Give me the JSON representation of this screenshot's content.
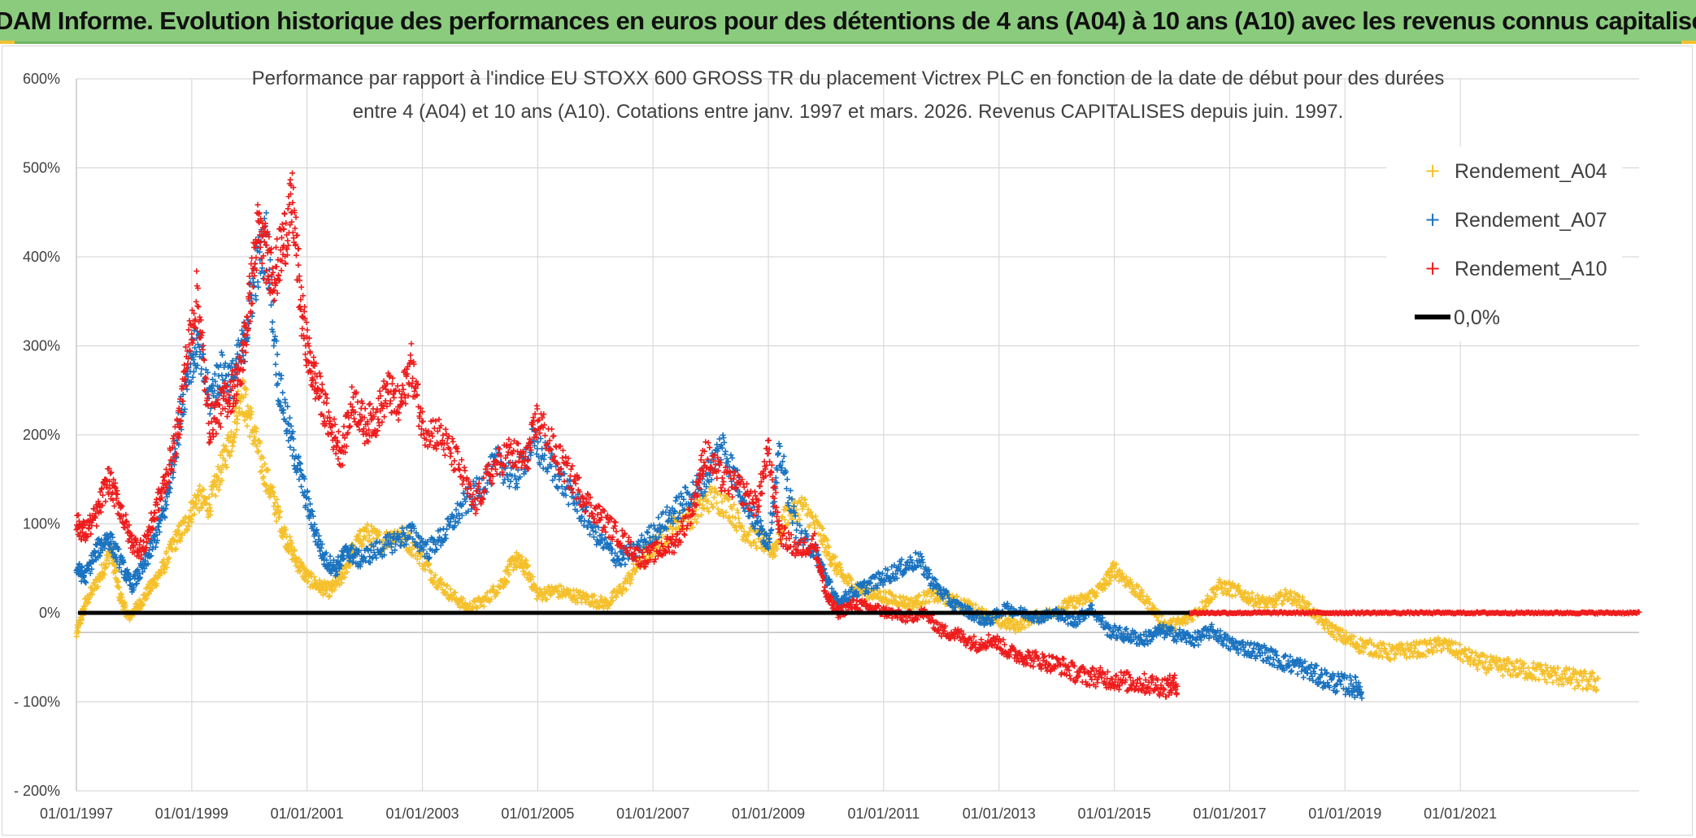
{
  "banner": {
    "title": "ADAM Informe. Evolution historique des performances en euros pour des détentions de 4 ans (A04) à 10 ans (A10) avec les revenus connus capitalisés"
  },
  "chart_data": {
    "type": "scatter",
    "title_line1": "Performance par rapport à l'indice EU STOXX 600 GROSS TR  du placement Victrex PLC en fonction de la date de début pour des durées",
    "title_line2": "entre 4 (A04) et 10 ans (A10). Cotations entre janv. 1997 et mars. 2026. Revenus CAPITALISES depuis juin. 1997.",
    "xlabel": "",
    "ylabel": "",
    "x_range": [
      1997.0,
      2024.1
    ],
    "ylim": [
      -200,
      600
    ],
    "y_ticks": [
      600,
      500,
      400,
      300,
      200,
      100,
      0,
      -100,
      -200
    ],
    "y_tick_labels": [
      "600%",
      "500%",
      "400%",
      "300%",
      "200%",
      "100%",
      "0%",
      "- 100%",
      "- 200%"
    ],
    "x_ticks": [
      1997,
      1999,
      2001,
      2003,
      2005,
      2007,
      2009,
      2011,
      2013,
      2015,
      2017,
      2019,
      2021
    ],
    "x_tick_labels": [
      "01/01/1997",
      "01/01/1999",
      "01/01/2001",
      "01/01/2003",
      "01/01/2005",
      "01/01/2007",
      "01/01/2009",
      "01/01/2011",
      "01/01/2013",
      "01/01/2015",
      "01/01/2017",
      "01/01/2019",
      "01/01/2021"
    ],
    "grid": true,
    "legend_position": "top-right",
    "legend": [
      "Rendement_A04",
      "Rendement_A07",
      "Rendement_A10",
      "0,0%"
    ],
    "colors": {
      "A04": "#f5c02b",
      "A07": "#1a73c0",
      "A10": "#ee1c1c",
      "zero": "#000000",
      "grid": "#d9d9d9",
      "axis": "#bfbfbf"
    },
    "series": [
      {
        "name": "Rendement_A04",
        "color_key": "A04",
        "x": [
          1997.0,
          1997.15,
          1997.4,
          1997.6,
          1997.75,
          1997.9,
          1998.1,
          1998.3,
          1998.5,
          1998.7,
          1998.9,
          1999.1,
          1999.3,
          1999.5,
          1999.7,
          1999.85,
          2000.0,
          2000.2,
          2000.4,
          2000.6,
          2000.8,
          2001.0,
          2001.2,
          2001.4,
          2001.6,
          2001.8,
          2002.0,
          2002.3,
          2002.6,
          2002.9,
          2003.2,
          2003.5,
          2003.8,
          2004.1,
          2004.4,
          2004.6,
          2004.8,
          2005.0,
          2005.3,
          2005.6,
          2005.9,
          2006.2,
          2006.5,
          2006.8,
          2007.1,
          2007.4,
          2007.7,
          2008.0,
          2008.3,
          2008.6,
          2008.9,
          2009.1,
          2009.3,
          2009.6,
          2009.9,
          2010.1,
          2010.3,
          2010.6,
          2010.9,
          2011.2,
          2011.5,
          2011.8,
          2012.1,
          2012.4,
          2012.7,
          2013.0,
          2013.3,
          2013.6,
          2013.9,
          2014.2,
          2014.5,
          2014.8,
          2015.0,
          2015.3,
          2015.6,
          2015.9,
          2016.2,
          2016.5,
          2016.8,
          2017.1,
          2017.4,
          2017.7,
          2018.0,
          2018.3,
          2018.6,
          2018.9,
          2019.2,
          2019.5,
          2019.8,
          2020.1,
          2020.4,
          2020.7,
          2021.0,
          2021.3,
          2021.6,
          2021.9,
          2022.2,
          2022.5,
          2022.8,
          2023.1,
          2023.4
        ],
        "values": [
          -25,
          10,
          40,
          70,
          20,
          -5,
          10,
          30,
          50,
          80,
          100,
          130,
          120,
          160,
          200,
          250,
          220,
          170,
          130,
          90,
          60,
          40,
          30,
          25,
          40,
          70,
          90,
          80,
          90,
          70,
          40,
          20,
          5,
          15,
          35,
          60,
          50,
          20,
          25,
          20,
          15,
          10,
          30,
          60,
          80,
          100,
          110,
          130,
          120,
          90,
          80,
          70,
          110,
          120,
          90,
          60,
          40,
          25,
          20,
          15,
          10,
          20,
          15,
          10,
          0,
          -10,
          -15,
          -5,
          0,
          10,
          15,
          30,
          50,
          30,
          10,
          -15,
          -10,
          5,
          30,
          25,
          15,
          10,
          20,
          10,
          -10,
          -25,
          -35,
          -40,
          -45,
          -42,
          -40,
          -35,
          -45,
          -55,
          -60,
          -62,
          -65,
          -68,
          -72,
          -76,
          -78
        ]
      },
      {
        "name": "Rendement_A07",
        "color_key": "A07",
        "x": [
          1997.0,
          1997.15,
          1997.35,
          1997.55,
          1997.75,
          1997.95,
          1998.15,
          1998.35,
          1998.55,
          1998.75,
          1998.95,
          1999.1,
          1999.3,
          1999.5,
          1999.7,
          1999.9,
          2000.1,
          2000.3,
          2000.5,
          2000.7,
          2000.9,
          2001.1,
          2001.3,
          2001.5,
          2001.7,
          2001.9,
          2002.2,
          2002.5,
          2002.8,
          2003.1,
          2003.4,
          2003.7,
          2004.0,
          2004.3,
          2004.6,
          2004.9,
          2005.2,
          2005.5,
          2005.8,
          2006.1,
          2006.4,
          2006.7,
          2007.0,
          2007.3,
          2007.6,
          2007.9,
          2008.2,
          2008.5,
          2008.8,
          2009.0,
          2009.2,
          2009.5,
          2009.8,
          2010.0,
          2010.2,
          2010.4,
          2010.7,
          2011.0,
          2011.3,
          2011.6,
          2011.9,
          2012.2,
          2012.5,
          2012.8,
          2013.1,
          2013.4,
          2013.7,
          2014.0,
          2014.3,
          2014.6,
          2014.9,
          2015.2,
          2015.5,
          2015.8,
          2016.1,
          2016.4,
          2016.7,
          2017.0,
          2017.3,
          2017.6,
          2017.9,
          2018.2,
          2018.5,
          2018.8,
          2019.1,
          2019.3
        ],
        "values": [
          50,
          40,
          70,
          85,
          60,
          30,
          50,
          80,
          120,
          200,
          280,
          300,
          240,
          270,
          260,
          300,
          380,
          420,
          260,
          200,
          150,
          100,
          60,
          50,
          70,
          60,
          70,
          80,
          90,
          70,
          90,
          120,
          140,
          170,
          150,
          190,
          170,
          140,
          110,
          80,
          60,
          70,
          90,
          110,
          130,
          150,
          190,
          140,
          100,
          80,
          180,
          90,
          70,
          40,
          10,
          20,
          30,
          40,
          50,
          60,
          30,
          10,
          0,
          -10,
          5,
          0,
          -5,
          0,
          -10,
          5,
          -20,
          -25,
          -30,
          -20,
          -25,
          -30,
          -20,
          -35,
          -40,
          -45,
          -55,
          -60,
          -70,
          -78,
          -82,
          -85
        ]
      },
      {
        "name": "Rendement_A10",
        "color_key": "A10",
        "x": [
          1997.0,
          1997.15,
          1997.35,
          1997.55,
          1997.75,
          1997.95,
          1998.15,
          1998.35,
          1998.55,
          1998.75,
          1998.9,
          1999.1,
          1999.3,
          1999.5,
          1999.7,
          1999.85,
          2000.0,
          2000.15,
          2000.3,
          2000.45,
          2000.6,
          2000.75,
          2000.9,
          2001.05,
          2001.2,
          2001.4,
          2001.6,
          2001.8,
          2002.0,
          2002.2,
          2002.4,
          2002.6,
          2002.8,
          2003.0,
          2003.3,
          2003.6,
          2003.9,
          2004.2,
          2004.5,
          2004.8,
          2005.0,
          2005.3,
          2005.6,
          2005.9,
          2006.2,
          2006.5,
          2006.8,
          2007.1,
          2007.4,
          2007.7,
          2007.9,
          2008.2,
          2008.5,
          2008.8,
          2009.0,
          2009.2,
          2009.5,
          2009.8,
          2010.0,
          2010.2,
          2010.5,
          2010.8,
          2011.1,
          2011.4,
          2011.7,
          2012.0,
          2012.3,
          2012.6,
          2012.9,
          2013.2,
          2013.5,
          2013.8,
          2014.1,
          2014.4,
          2014.7,
          2015.0,
          2015.3,
          2015.6,
          2015.9,
          2016.1
        ],
        "values": [
          100,
          90,
          110,
          150,
          120,
          80,
          70,
          110,
          150,
          200,
          280,
          360,
          210,
          230,
          250,
          270,
          350,
          430,
          400,
          380,
          420,
          460,
          340,
          280,
          250,
          210,
          180,
          240,
          210,
          220,
          250,
          230,
          280,
          210,
          200,
          170,
          120,
          160,
          180,
          170,
          220,
          180,
          150,
          120,
          100,
          80,
          60,
          70,
          80,
          120,
          180,
          150,
          140,
          120,
          180,
          90,
          70,
          80,
          20,
          0,
          10,
          5,
          0,
          -5,
          0,
          -20,
          -25,
          -35,
          -30,
          -45,
          -50,
          -55,
          -60,
          -70,
          -72,
          -75,
          -78,
          -80,
          -83,
          -80
        ]
      },
      {
        "name": "Rendement_A10_flat",
        "color_key": "A10",
        "x_start": 2016.3,
        "x_end": 2024.1,
        "value": 0
      }
    ],
    "zero_line": {
      "value": 0,
      "label": "0,0%"
    }
  }
}
